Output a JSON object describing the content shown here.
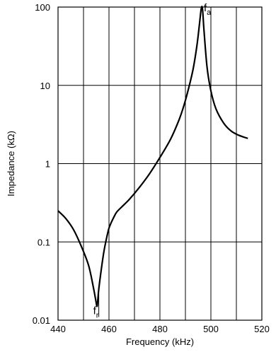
{
  "chart_data": {
    "type": "line",
    "xlabel": "Frequency (kHz)",
    "ylabel": "Impedance (kΩ)",
    "xlim": [
      440,
      520
    ],
    "ylim": [
      0.01,
      100
    ],
    "yscale": "log",
    "grid": true,
    "xticks": [
      440,
      460,
      480,
      500,
      520
    ],
    "x_gridlines": [
      440,
      450,
      460,
      470,
      480,
      490,
      500,
      510,
      520
    ],
    "yticks": [
      {
        "value": 0.01,
        "label": "0.01"
      },
      {
        "value": 0.1,
        "label": "0.1"
      },
      {
        "value": 1,
        "label": "1"
      },
      {
        "value": 10,
        "label": "10"
      },
      {
        "value": 100,
        "label": "100"
      }
    ],
    "series": [
      {
        "x": [
          440,
          443,
          446,
          449,
          452,
          454,
          454.8,
          455.3,
          455.6,
          456,
          457,
          458,
          459,
          460,
          461,
          462,
          463,
          465,
          468,
          472,
          476,
          480,
          484,
          487,
          489,
          491,
          493,
          494.5,
          495.5,
          496.2,
          496.7,
          497.3,
          498.5,
          500,
          502,
          505,
          508,
          511,
          514.5
        ],
        "y": [
          0.25,
          0.2,
          0.145,
          0.09,
          0.05,
          0.025,
          0.018,
          0.015,
          0.018,
          0.025,
          0.045,
          0.075,
          0.11,
          0.15,
          0.18,
          0.21,
          0.24,
          0.28,
          0.35,
          0.5,
          0.75,
          1.2,
          2.0,
          3.3,
          5.0,
          8.5,
          16,
          32,
          60,
          95,
          95,
          50,
          17,
          8.5,
          5,
          3.3,
          2.6,
          2.3,
          2.1
        ]
      }
    ],
    "annotations": [
      {
        "base": "f",
        "sub": "r",
        "x": 456
      },
      {
        "base": "f",
        "sub": "a",
        "x": 500
      }
    ]
  }
}
